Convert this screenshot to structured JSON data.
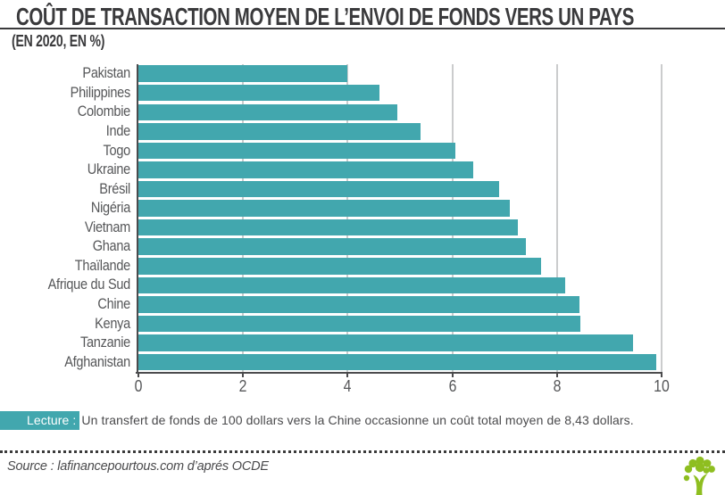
{
  "header": {
    "title": "COÛT DE TRANSACTION MOYEN DE L’ENVOI DE FONDS VERS UN PAYS",
    "subtitle": "(EN 2020, EN %)"
  },
  "chart_data": {
    "type": "bar",
    "orientation": "horizontal",
    "title": "Coût de transaction moyen de l’envoi de fonds vers un pays (en 2020, en %)",
    "categories": [
      "Pakistan",
      "Philippines",
      "Colombie",
      "Inde",
      "Togo",
      "Ukraine",
      "Brésil",
      "Nigéria",
      "Vietnam",
      "Ghana",
      "Thaïlande",
      "Afrique du Sud",
      "Chine",
      "Kenya",
      "Tanzanie",
      "Afghanistan"
    ],
    "values": [
      4.0,
      4.6,
      4.95,
      5.4,
      6.05,
      6.4,
      6.9,
      7.1,
      7.25,
      7.4,
      7.7,
      8.15,
      8.43,
      8.45,
      9.45,
      9.9
    ],
    "xlabel": "",
    "ylabel": "",
    "xlim": [
      0,
      10
    ],
    "xticks": [
      0,
      2,
      4,
      6,
      8,
      10
    ],
    "grid": "vertical",
    "legend": "none",
    "bar_color": "#42a7ae"
  },
  "annotation": {
    "tag": "Lecture :",
    "text": "Un transfert de fonds de 100 dollars vers la Chine occasionne un coût total moyen de 8,43 dollars."
  },
  "footer": {
    "source": "Source : lafinancepourtous.com d’aprés OCDE",
    "logo": "tree-logo"
  },
  "colors": {
    "accent_teal": "#42a7ae",
    "logo_green": "#8ebe20",
    "title_text": "#3a3a3c",
    "axis_text": "#565759",
    "gridline": "#cbcccd",
    "axis_line": "#4b4b4d"
  }
}
